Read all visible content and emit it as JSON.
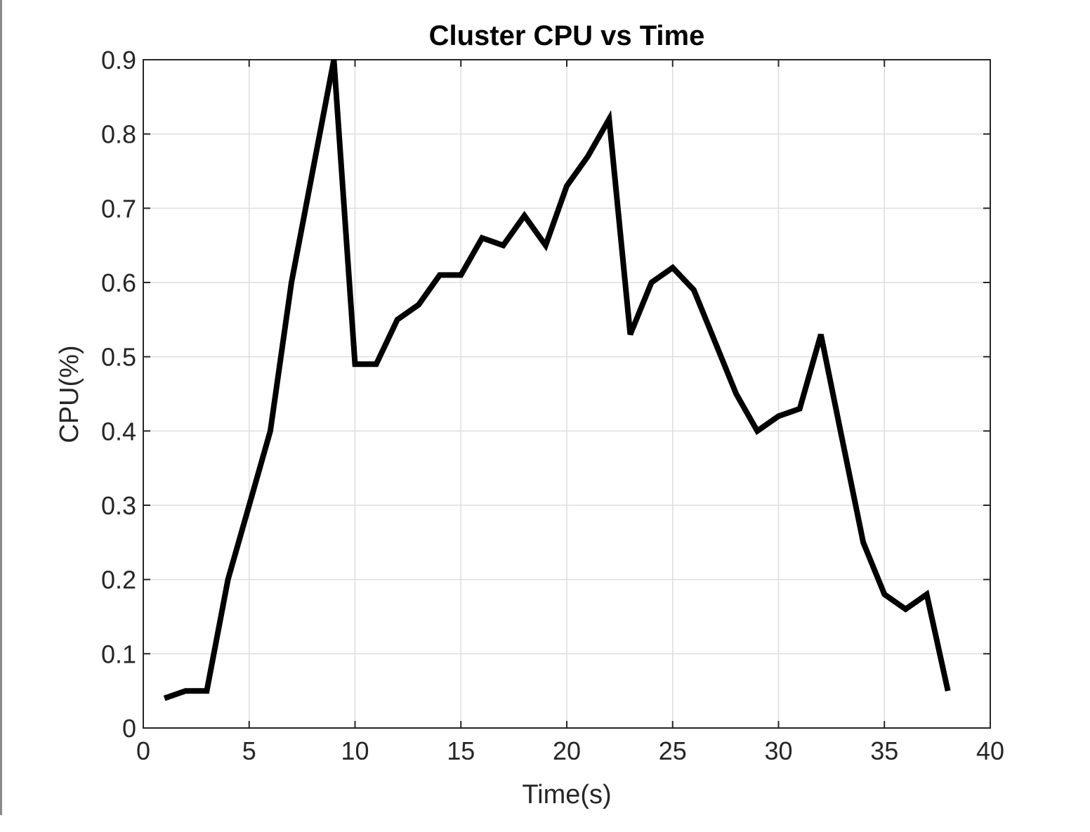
{
  "chart_data": {
    "type": "line",
    "title": "Cluster CPU vs Time",
    "xlabel": "Time(s)",
    "ylabel": "CPU(%)",
    "xlim": [
      0,
      40
    ],
    "ylim": [
      0,
      0.9
    ],
    "xticks": [
      0,
      5,
      10,
      15,
      20,
      25,
      30,
      35,
      40
    ],
    "xtick_labels": [
      "0",
      "5",
      "10",
      "15",
      "20",
      "25",
      "30",
      "35",
      "40"
    ],
    "yticks": [
      0,
      0.1,
      0.2,
      0.3,
      0.4,
      0.5,
      0.6,
      0.7,
      0.8,
      0.9
    ],
    "ytick_labels": [
      "0",
      "0.1",
      "0.2",
      "0.3",
      "0.4",
      "0.5",
      "0.6",
      "0.7",
      "0.8",
      "0.9"
    ],
    "grid": true,
    "legend": "none",
    "line_color": "#000000",
    "grid_color": "#dedede",
    "axis_color": "#262626",
    "series": [
      {
        "x": [
          1,
          2,
          3,
          4,
          5,
          6,
          7,
          8,
          9,
          10,
          11,
          12,
          13,
          14,
          15,
          16,
          17,
          18,
          19,
          20,
          21,
          22,
          23,
          24,
          25,
          26,
          27,
          28,
          29,
          30,
          31,
          32,
          33,
          34,
          35,
          36,
          37,
          38
        ],
        "values": [
          0.04,
          0.05,
          0.05,
          0.2,
          0.3,
          0.4,
          0.6,
          0.75,
          0.9,
          0.49,
          0.49,
          0.55,
          0.57,
          0.61,
          0.61,
          0.66,
          0.65,
          0.69,
          0.65,
          0.73,
          0.77,
          0.82,
          0.53,
          0.6,
          0.62,
          0.59,
          0.52,
          0.45,
          0.4,
          0.42,
          0.43,
          0.53,
          0.39,
          0.25,
          0.18,
          0.16,
          0.18,
          0.05
        ]
      }
    ]
  }
}
